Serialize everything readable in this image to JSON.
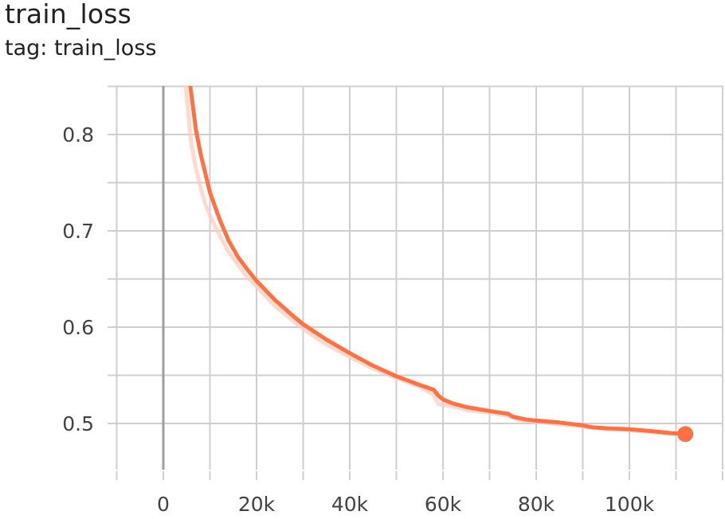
{
  "card": {
    "title": "train_loss",
    "subtitle": "tag: train_loss"
  },
  "colors": {
    "series": "#ff7043",
    "series_raw": "#ffccbc",
    "grid": "#cfcfcf",
    "zero_line": "#9e9e9e",
    "tick_text": "#424242"
  },
  "chart_data": {
    "type": "line",
    "title": "train_loss",
    "xlabel": "",
    "ylabel": "",
    "xlim": [
      -10000,
      120000
    ],
    "ylim": [
      0.45,
      0.85
    ],
    "x_ticks": [
      0,
      20000,
      40000,
      60000,
      80000,
      100000
    ],
    "x_tick_labels": [
      "0",
      "20k",
      "40k",
      "60k",
      "80k",
      "100k"
    ],
    "y_ticks": [
      0.5,
      0.6,
      0.7,
      0.8
    ],
    "y_tick_labels": [
      "0.5",
      "0.6",
      "0.7",
      "0.8"
    ],
    "grid": true,
    "series": [
      {
        "role": "smoothed",
        "x": [
          5800,
          7000,
          8000,
          9000,
          10000,
          12000,
          14000,
          16000,
          18000,
          20000,
          24000,
          28000,
          30000,
          35000,
          40000,
          45000,
          50000,
          55000,
          58000,
          59000,
          60000,
          62000,
          65000,
          70000,
          74000,
          75000,
          78000,
          80000,
          85000,
          90000,
          92000,
          95000,
          100000,
          105000,
          109000,
          112000
        ],
        "y": [
          0.85,
          0.805,
          0.78,
          0.76,
          0.74,
          0.713,
          0.69,
          0.673,
          0.66,
          0.648,
          0.628,
          0.611,
          0.603,
          0.587,
          0.573,
          0.56,
          0.549,
          0.54,
          0.535,
          0.529,
          0.525,
          0.521,
          0.517,
          0.513,
          0.51,
          0.507,
          0.504,
          0.503,
          0.501,
          0.498,
          0.496,
          0.495,
          0.494,
          0.492,
          0.49,
          0.489
        ]
      },
      {
        "role": "raw",
        "x": [
          4800,
          6000,
          7000,
          8000,
          9000,
          10000,
          12000,
          14000,
          16000,
          18000,
          20000,
          24000,
          28000,
          30000,
          35000,
          40000,
          45000,
          50000,
          55000,
          58000,
          59000,
          62000,
          65000,
          70000,
          74000,
          76000,
          80000,
          85000,
          90000,
          95000,
          100000,
          105000,
          109000,
          112000
        ],
        "y": [
          0.85,
          0.79,
          0.765,
          0.745,
          0.728,
          0.716,
          0.696,
          0.678,
          0.665,
          0.652,
          0.642,
          0.622,
          0.606,
          0.598,
          0.582,
          0.569,
          0.557,
          0.547,
          0.538,
          0.53,
          0.52,
          0.518,
          0.514,
          0.511,
          0.508,
          0.504,
          0.502,
          0.499,
          0.497,
          0.494,
          0.493,
          0.491,
          0.489,
          0.488
        ]
      }
    ],
    "last_point": {
      "x": 112000,
      "y": 0.489
    }
  }
}
